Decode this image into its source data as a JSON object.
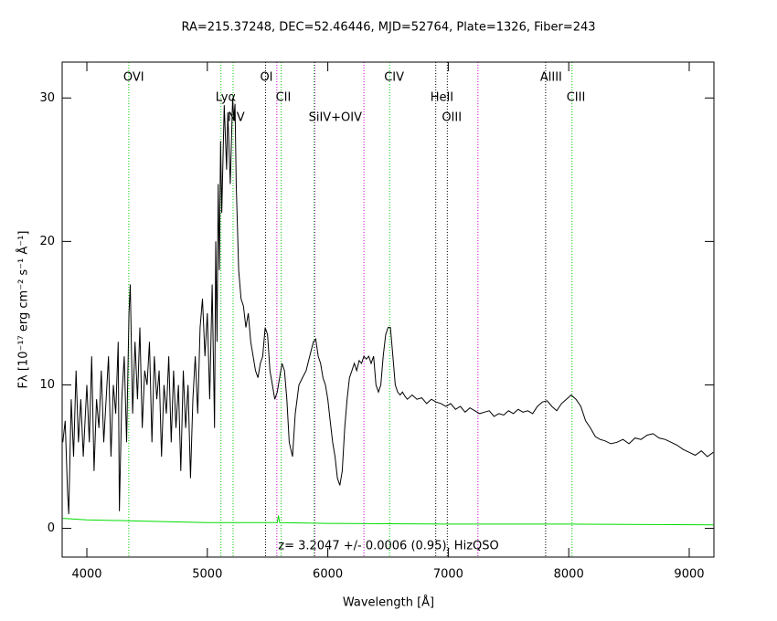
{
  "chart_data": {
    "type": "line",
    "title": "RA=215.37248, DEC=52.46446, MJD=52764, Plate=1326, Fiber=243",
    "annotation": "z= 3.2047 +/- 0.0006 (0.95), HizQSO",
    "xlabel": "Wavelength [Å]",
    "ylabel": "Fλ [10⁻¹⁷ erg cm⁻² s⁻¹ Å⁻¹]",
    "xlim": [
      3795,
      9205
    ],
    "ylim": [
      -2,
      32.5
    ],
    "xticks": [
      4000,
      5000,
      6000,
      7000,
      8000,
      9000
    ],
    "yticks": [
      0,
      10,
      20,
      30
    ],
    "series": [
      {
        "name": "flux",
        "color": "#000000",
        "x": [
          3800,
          3820,
          3840,
          3850,
          3870,
          3890,
          3910,
          3930,
          3950,
          3970,
          4000,
          4020,
          4040,
          4060,
          4080,
          4100,
          4120,
          4140,
          4160,
          4180,
          4200,
          4220,
          4240,
          4260,
          4270,
          4290,
          4310,
          4330,
          4350,
          4360,
          4380,
          4400,
          4420,
          4440,
          4460,
          4480,
          4500,
          4520,
          4540,
          4560,
          4580,
          4600,
          4620,
          4640,
          4660,
          4680,
          4700,
          4720,
          4740,
          4760,
          4780,
          4800,
          4820,
          4840,
          4860,
          4880,
          4900,
          4920,
          4940,
          4960,
          4980,
          5000,
          5020,
          5040,
          5060,
          5070,
          5080,
          5090,
          5100,
          5110,
          5120,
          5140,
          5160,
          5170,
          5190,
          5210,
          5220,
          5230,
          5240,
          5260,
          5280,
          5300,
          5320,
          5340,
          5360,
          5380,
          5400,
          5420,
          5440,
          5460,
          5480,
          5500,
          5520,
          5540,
          5560,
          5580,
          5600,
          5620,
          5640,
          5660,
          5680,
          5707,
          5730,
          5760,
          5790,
          5820,
          5850,
          5880,
          5900,
          5920,
          5940,
          5960,
          5980,
          6000,
          6020,
          6040,
          6060,
          6080,
          6100,
          6120,
          6140,
          6160,
          6180,
          6200,
          6220,
          6240,
          6260,
          6280,
          6300,
          6320,
          6340,
          6360,
          6380,
          6400,
          6420,
          6440,
          6460,
          6480,
          6500,
          6520,
          6540,
          6560,
          6580,
          6600,
          6620,
          6640,
          6660,
          6700,
          6740,
          6780,
          6820,
          6860,
          6900,
          6940,
          6980,
          7020,
          7060,
          7100,
          7140,
          7180,
          7220,
          7260,
          7300,
          7340,
          7380,
          7420,
          7460,
          7500,
          7540,
          7580,
          7620,
          7660,
          7700,
          7740,
          7780,
          7820,
          7860,
          7900,
          7940,
          7980,
          8020,
          8060,
          8100,
          8140,
          8180,
          8220,
          8260,
          8300,
          8350,
          8400,
          8450,
          8500,
          8550,
          8600,
          8650,
          8700,
          8750,
          8800,
          8850,
          8900,
          8950,
          9000,
          9050,
          9100,
          9150,
          9200
        ],
        "values": [
          6,
          7.5,
          2.5,
          1,
          9,
          5,
          11,
          6,
          9,
          5,
          10,
          6,
          12,
          4,
          9,
          7,
          11,
          6,
          9,
          12,
          5,
          10,
          8,
          13,
          1.2,
          9,
          12,
          6,
          15,
          17,
          8,
          13,
          9,
          14,
          7,
          11,
          10,
          13,
          6,
          12,
          9,
          11,
          5,
          10,
          8,
          12,
          6,
          11,
          7,
          10,
          4,
          11,
          7,
          10,
          3.5,
          9,
          12,
          8,
          14,
          16,
          12,
          15,
          9,
          17,
          7,
          20,
          13,
          24,
          18,
          27,
          22,
          29.5,
          25,
          29,
          24,
          30,
          28.5,
          29.6,
          24,
          18,
          16,
          15.5,
          14,
          15,
          13,
          12,
          11,
          10.5,
          11.5,
          12,
          14,
          13.5,
          11,
          10,
          9,
          9.5,
          10.5,
          11.5,
          11,
          9,
          6,
          5,
          8,
          10,
          10.5,
          11,
          12,
          13,
          13.2,
          12,
          11.5,
          10.5,
          10,
          9,
          7.5,
          6,
          5,
          3.5,
          3,
          4,
          7,
          9,
          10.5,
          11,
          11.5,
          11,
          11.7,
          11.5,
          12,
          11.8,
          12,
          11.5,
          12,
          10,
          9.5,
          10,
          12,
          13.5,
          14,
          14,
          12,
          10,
          9.5,
          9.3,
          9.5,
          9.2,
          9,
          9.3,
          9,
          9.1,
          8.7,
          9,
          8.8,
          8.7,
          8.5,
          8.7,
          8.3,
          8.5,
          8.1,
          8.4,
          8.2,
          8,
          8.1,
          8.2,
          7.8,
          8,
          7.9,
          8.2,
          8,
          8.3,
          8.1,
          8.2,
          8,
          8.5,
          8.8,
          8.9,
          8.5,
          8.2,
          8.7,
          9,
          9.3,
          9,
          8.5,
          7.5,
          7,
          6.4,
          6.2,
          6.1,
          5.9,
          6,
          6.2,
          5.9,
          6.3,
          6.2,
          6.5,
          6.6,
          6.3,
          6.2,
          6,
          5.8,
          5.5,
          5.3,
          5.1,
          5.4,
          5,
          5.3
        ]
      },
      {
        "name": "error",
        "color": "#00dd00",
        "x": [
          3800,
          4000,
          4500,
          5000,
          5580,
          5590,
          5600,
          6000,
          7000,
          8000,
          9200
        ],
        "values": [
          0.7,
          0.6,
          0.5,
          0.4,
          0.4,
          0.9,
          0.4,
          0.35,
          0.3,
          0.3,
          0.25
        ]
      }
    ],
    "line_markers": [
      {
        "label": "OVI",
        "x": 4348,
        "color": "#00cc00"
      },
      {
        "label": "Lyα",
        "x": 5113,
        "color": "#00cc00"
      },
      {
        "label": "NV",
        "x": 5214,
        "color": "#00cc00"
      },
      {
        "label": "OI",
        "x": 5483,
        "color": "#000000"
      },
      {
        "label": "CII",
        "x": 5613,
        "color": "#00cc00"
      },
      {
        "label": "SiIV+OIV",
        "x": 5886,
        "color": "#00cc00"
      },
      {
        "label": "CIV",
        "x": 6513,
        "color": "#00cc00"
      },
      {
        "label": "HeII",
        "x": 6896,
        "color": "#000000"
      },
      {
        "label": "OIII",
        "x": 6992,
        "color": "#000000"
      },
      {
        "label": "AlIII",
        "x": 7808,
        "color": "#000000"
      },
      {
        "label": "CIII",
        "x": 8027,
        "color": "#00cc00"
      }
    ],
    "sky_lines": {
      "color": "#cc00cc",
      "x": [
        5577,
        5893,
        6300,
        7246
      ]
    }
  }
}
